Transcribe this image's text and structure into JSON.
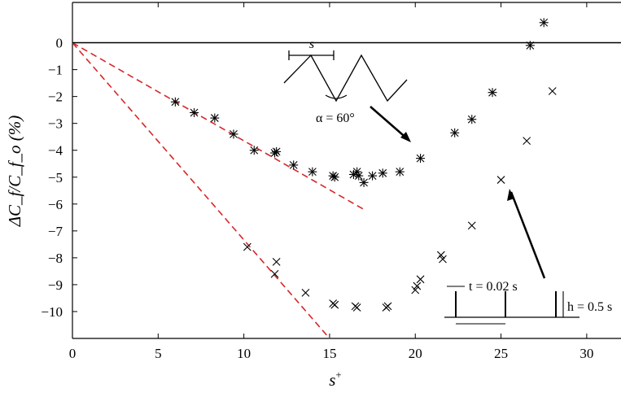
{
  "chart_data": {
    "type": "scatter",
    "title": "",
    "xlabel": "s",
    "xlabel_sup": "+",
    "ylabel": "ΔC_f/C_f_o (%)",
    "xlim": [
      0,
      32
    ],
    "ylim": [
      -11,
      1.5
    ],
    "x_ticks": [
      0,
      5,
      10,
      15,
      20,
      25,
      30
    ],
    "y_ticks": [
      0,
      -1,
      -2,
      -3,
      -4,
      -5,
      -6,
      -7,
      -8,
      -9,
      -10
    ],
    "grid": false,
    "legend": "none",
    "zero_line": 0,
    "series": [
      {
        "marker": "asterisk",
        "color": "#000000",
        "x": [
          6.0,
          7.1,
          8.3,
          9.4,
          10.6,
          11.8,
          11.9,
          12.9,
          14.0,
          15.2,
          15.3,
          16.4,
          16.6,
          16.7,
          17.0,
          17.5,
          18.1,
          19.1,
          20.3,
          22.3,
          23.3,
          24.5,
          26.7,
          27.5
        ],
        "y": [
          -2.2,
          -2.6,
          -2.8,
          -3.4,
          -4.0,
          -4.1,
          -4.05,
          -4.55,
          -4.8,
          -4.95,
          -5.0,
          -4.9,
          -4.8,
          -4.95,
          -5.2,
          -4.95,
          -4.85,
          -4.8,
          -4.3,
          -3.35,
          -2.85,
          -1.85,
          -0.1,
          0.75
        ]
      },
      {
        "marker": "x",
        "color": "#000000",
        "x": [
          10.2,
          11.8,
          11.9,
          13.6,
          15.2,
          15.3,
          16.5,
          16.6,
          18.3,
          18.4,
          20.0,
          20.1,
          20.3,
          21.5,
          21.6,
          23.3,
          25.0,
          26.5,
          28.0
        ],
        "y": [
          -7.6,
          -8.6,
          -8.15,
          -9.3,
          -9.7,
          -9.75,
          -9.8,
          -9.85,
          -9.85,
          -9.8,
          -9.2,
          -9.05,
          -8.8,
          -7.9,
          -8.05,
          -6.8,
          -5.1,
          -3.65,
          -1.8
        ]
      },
      {
        "marker": "dashed-line",
        "color": "#d62728",
        "x": [
          0,
          17.0
        ],
        "y": [
          0,
          -6.2
        ]
      },
      {
        "marker": "dashed-line",
        "color": "#d62728",
        "x": [
          0,
          15.0
        ],
        "y": [
          0,
          -11.0
        ]
      }
    ],
    "annotations": {
      "sawtooth_spacing_label": "s",
      "sawtooth_angle_label": "α = 60°",
      "blade_thickness_label": "t = 0.02 s",
      "blade_height_label": "h = 0.5 s"
    }
  }
}
